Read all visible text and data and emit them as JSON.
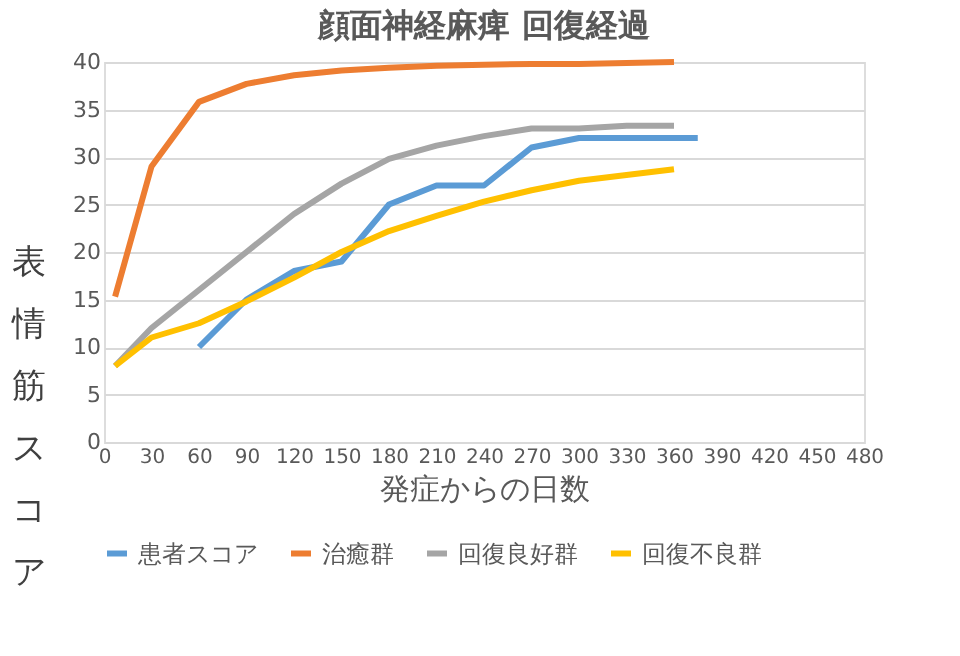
{
  "chart_data": {
    "type": "line",
    "title": "顔面神経麻痺  回復経過",
    "xlabel": "発症からの日数",
    "ylabel": "表情筋スコア",
    "xlim": [
      0,
      480
    ],
    "xticks": [
      0,
      30,
      60,
      90,
      120,
      150,
      180,
      210,
      240,
      270,
      300,
      330,
      360,
      390,
      420,
      450,
      480
    ],
    "ylim": [
      0,
      40
    ],
    "yticks": [
      0,
      5,
      10,
      15,
      20,
      25,
      30,
      35,
      40
    ],
    "grid": "y",
    "legend": "bottom",
    "marker": "none",
    "line_style": "solid",
    "series": [
      {
        "name": "患者スコア",
        "color": "#5b9bd5",
        "x": [
          60,
          90,
          120,
          150,
          180,
          210,
          240,
          270,
          300,
          330,
          375
        ],
        "values": [
          10,
          15,
          18,
          19,
          25,
          27,
          27,
          31,
          32,
          32,
          32
        ]
      },
      {
        "name": "治癒群",
        "color": "#ed7d31",
        "x": [
          7,
          30,
          60,
          90,
          120,
          150,
          180,
          210,
          240,
          270,
          300,
          330,
          360
        ],
        "values": [
          15.3,
          29,
          35.8,
          37.7,
          38.6,
          39.1,
          39.4,
          39.6,
          39.7,
          39.8,
          39.8,
          39.9,
          40
        ]
      },
      {
        "name": "回復良好群",
        "color": "#a5a5a5",
        "x": [
          7,
          30,
          60,
          90,
          120,
          150,
          180,
          210,
          240,
          270,
          300,
          330,
          360
        ],
        "values": [
          8,
          12,
          16,
          20,
          24,
          27.2,
          29.8,
          31.2,
          32.2,
          33,
          33,
          33.3,
          33.3
        ]
      },
      {
        "name": "回復不良群",
        "color": "#ffc000",
        "x": [
          7,
          30,
          60,
          90,
          120,
          150,
          180,
          210,
          240,
          270,
          300,
          330,
          360
        ],
        "values": [
          8,
          11,
          12.5,
          14.8,
          17.3,
          20,
          22.2,
          23.8,
          25.3,
          26.5,
          27.5,
          28.1,
          28.7
        ]
      }
    ]
  }
}
